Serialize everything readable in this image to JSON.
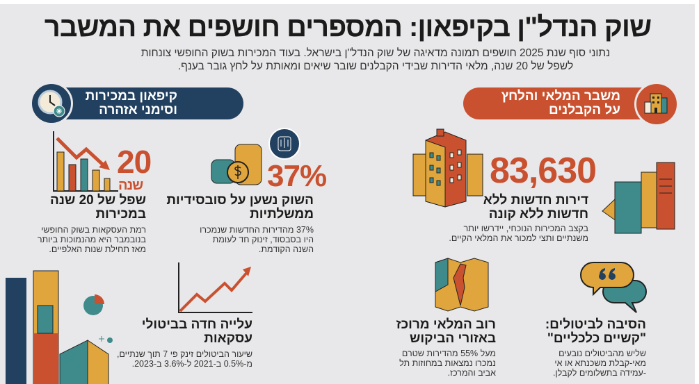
{
  "title": "שוק הנדל\"ן בקיפאון: המספרים חושפים את המשבר",
  "subtitle": [
    "נתוני סוף שנת 2025 חושפים תמונה מדאיגה של שוק הנדל\"ן בישראל. בעוד המכירות בשוק החופשי צונחות",
    "לשפל של 20 שנה, מלאי הדירות שבידי הקבלנים שובר שיאים ומאותת על לחץ גובר בענף."
  ],
  "colors": {
    "navy": "#22405f",
    "orange": "#c9512f",
    "teal": "#3f8b8c",
    "yellow": "#e0a53c"
  },
  "left_section": {
    "header": [
      "קיפאון במכירות",
      "וסימני אזהרה"
    ],
    "icon": "frozen-clock-icon",
    "stat_20": {
      "value": "20",
      "unit": "שנה",
      "heading": [
        "שפל של 20 שנה",
        "במכירות"
      ],
      "desc": [
        "רמת העסקאות בשוק החופשי",
        "בנובמבר היא מהנמוכות ביותר",
        "מאז תחילת שנות האלפיים."
      ]
    },
    "stat_37": {
      "value": "37%",
      "heading": [
        "השוק נשען על סובסידיות",
        "ממשלתיות"
      ],
      "desc": [
        "37% מהדירות החדשות שנמכרו",
        "היו בסבסוד, זינוק חד לעומת",
        "השנה הקודמת."
      ]
    },
    "cancellations": {
      "heading": [
        "עלייה חדה בביטולי",
        "עסקאות"
      ],
      "desc": [
        "שיעור הביטולים זינק פי 7 תוך שנתיים,",
        "מ-0.5% ב-2021 ל-3.6% ב-2023."
      ]
    }
  },
  "right_section": {
    "header": [
      "משבר המלאי והלחץ",
      "על הקבלנים"
    ],
    "icon": "buildings-icon",
    "inventory": {
      "value": "83,630",
      "heading": [
        "דירות חדשות ללא",
        "חדשות ללא קונה"
      ],
      "desc": [
        "בקצב המכירות הנוכחי, יידרשו יותר",
        "משנתיים ותצי למכור את המלאי הקיים."
      ]
    },
    "location": {
      "heading": [
        "רוב המלאי מרוכז",
        "באזורי הביקוש"
      ],
      "desc": [
        "מעל 55% מהדירות שטרם",
        "נמכרו נמצאות במחוזות תל",
        "אביב והמרכז."
      ]
    },
    "reason": {
      "heading": [
        "הסיבה לביטולים:",
        "\"קשיים כלכליים\""
      ],
      "desc": [
        "שליש מהביטולים נובעים",
        "מאי-קבלת משכנתא או אי",
        "-עמידה בתשלומים לקבלן."
      ]
    }
  }
}
